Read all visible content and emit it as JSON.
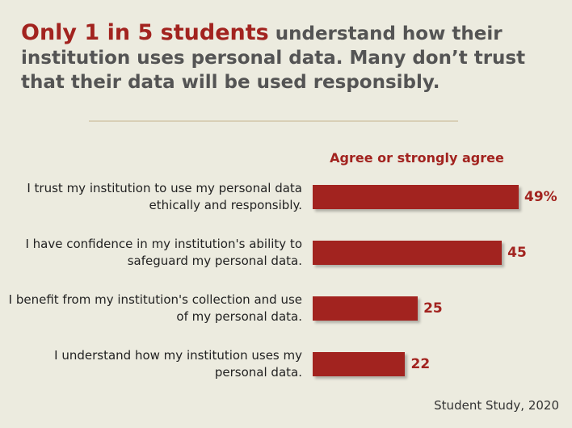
{
  "headline": {
    "highlight": "Only 1 in 5 students",
    "rest": " understand how their institution uses personal data. Many don’t trust that their data will be used responsibly."
  },
  "chart_data": {
    "type": "bar",
    "orientation": "horizontal",
    "header": "Agree or strongly agree",
    "categories": [
      "I trust my institution to use my personal data ethically and responsibly.",
      "I have confidence in my institution's ability to safeguard my personal data.",
      "I benefit from my institution's collection and use of my personal data.",
      "I understand how my institution uses my personal data."
    ],
    "values": [
      49,
      45,
      25,
      22
    ],
    "value_labels": [
      "49%",
      "45",
      "25",
      "22"
    ],
    "xlim": [
      0,
      49
    ],
    "bar_color": "#a2231f",
    "grid": false
  },
  "source": "Student Study, 2020"
}
